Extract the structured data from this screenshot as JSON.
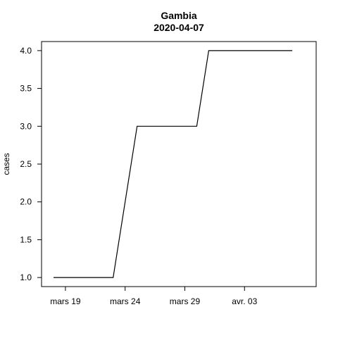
{
  "chart_data": {
    "type": "line",
    "title": "Gambia",
    "subtitle": "2020-04-07",
    "xlabel": "",
    "ylabel": "cases",
    "x_tick_labels": [
      "mars 19",
      "mars 24",
      "mars 29",
      "avr. 03"
    ],
    "x_tick_dates": [
      "2020-03-19",
      "2020-03-24",
      "2020-03-29",
      "2020-04-03"
    ],
    "y_ticks": [
      "1.0",
      "1.5",
      "2.0",
      "2.5",
      "3.0",
      "3.5",
      "4.0"
    ],
    "xlim": [
      "2020-03-17",
      "2020-04-09"
    ],
    "ylim": [
      0.88,
      4.12
    ],
    "grid": false,
    "series": [
      {
        "color": "#000000",
        "points": [
          {
            "x": "2020-03-18",
            "y": 1
          },
          {
            "x": "2020-03-22",
            "y": 1
          },
          {
            "x": "2020-03-23",
            "y": 1
          },
          {
            "x": "2020-03-25",
            "y": 3
          },
          {
            "x": "2020-03-30",
            "y": 3
          },
          {
            "x": "2020-03-31",
            "y": 4
          },
          {
            "x": "2020-04-07",
            "y": 4
          }
        ]
      }
    ]
  }
}
